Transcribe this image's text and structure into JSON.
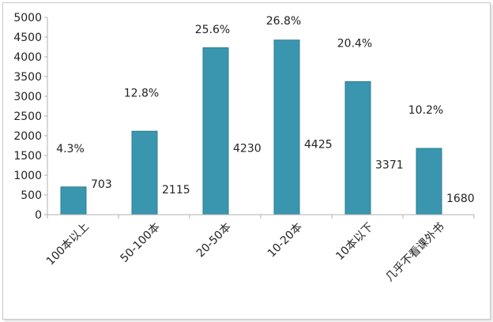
{
  "chart_data": {
    "type": "bar",
    "title": "",
    "xlabel": "",
    "ylabel": "",
    "ylim": [
      0,
      5000
    ],
    "yticks": [
      0,
      500,
      1000,
      1500,
      2000,
      2500,
      3000,
      3500,
      4000,
      4500,
      5000
    ],
    "ytick_labels": [
      "0",
      "500",
      "1000",
      "1500",
      "2000",
      "2500",
      "3000",
      "3500",
      "4000",
      "4500",
      "5000"
    ],
    "grid": false,
    "legend": "none",
    "categories": [
      "100本以上",
      "50-100本",
      "20-50本",
      "10-20本",
      "10本以下",
      "几乎不看课外书"
    ],
    "values": [
      703,
      2115,
      4230,
      4425,
      3371,
      1680
    ],
    "value_labels": [
      "703",
      "2115",
      "4230",
      "4425",
      "3371",
      "1680"
    ],
    "percent_labels": [
      "4.3%",
      "12.8%",
      "25.6%",
      "26.8%",
      "20.4%",
      "10.2%"
    ],
    "bar_color": "#3a96ae",
    "bar_edge_color": "#2c7d93"
  }
}
